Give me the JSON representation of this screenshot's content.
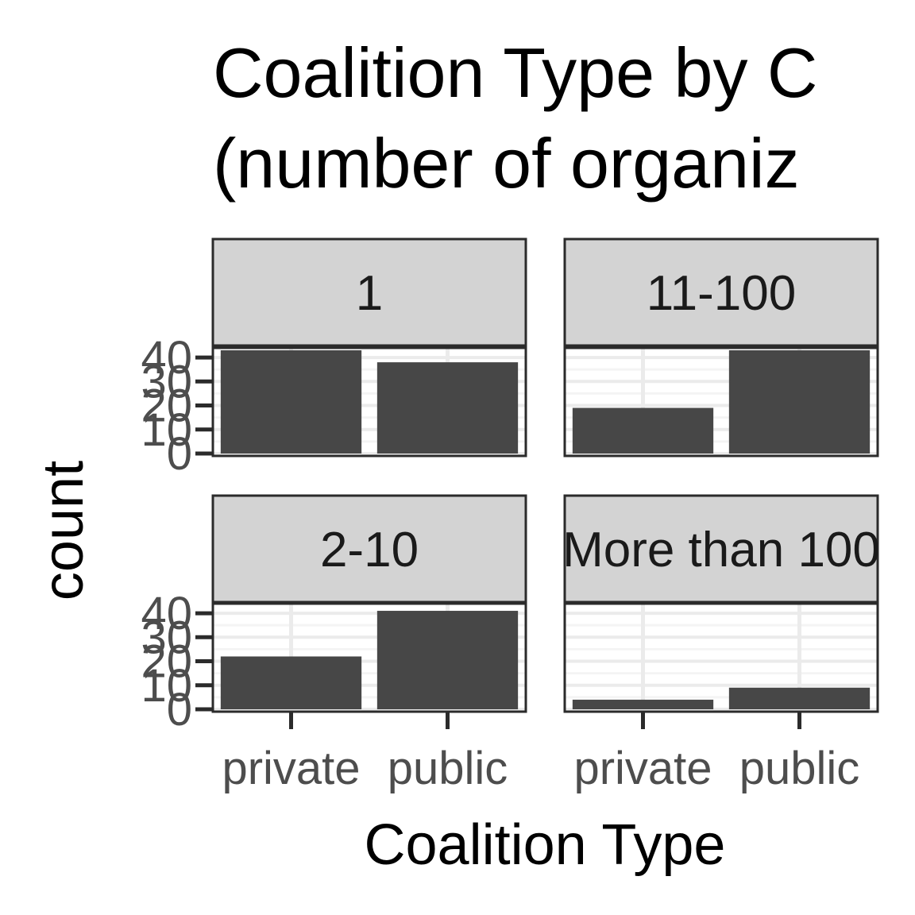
{
  "chart_data": {
    "type": "bar",
    "title": "Coalition Type by C",
    "subtitle": "(number of organiz",
    "xlabel": "Coalition Type",
    "ylabel": "count",
    "categories": [
      "private",
      "public"
    ],
    "ylim": [
      0,
      43
    ],
    "y_ticks": [
      "0",
      "10",
      "20",
      "30",
      "40"
    ],
    "grid": true,
    "panels": [
      {
        "strip": "1",
        "values": [
          43,
          38
        ]
      },
      {
        "strip": "11-100",
        "values": [
          19,
          43
        ]
      },
      {
        "strip": "2-10",
        "values": [
          22,
          41
        ]
      },
      {
        "strip": "More than 100",
        "values": [
          4,
          9
        ]
      }
    ]
  },
  "colors": {
    "bar": "#474747",
    "strip_fill": "#d3d3d3",
    "frame": "#2b2b2b",
    "major_grid": "#ebebeb",
    "minor_grid": "#f4f4f4",
    "tick_text": "#4d4d4d"
  }
}
